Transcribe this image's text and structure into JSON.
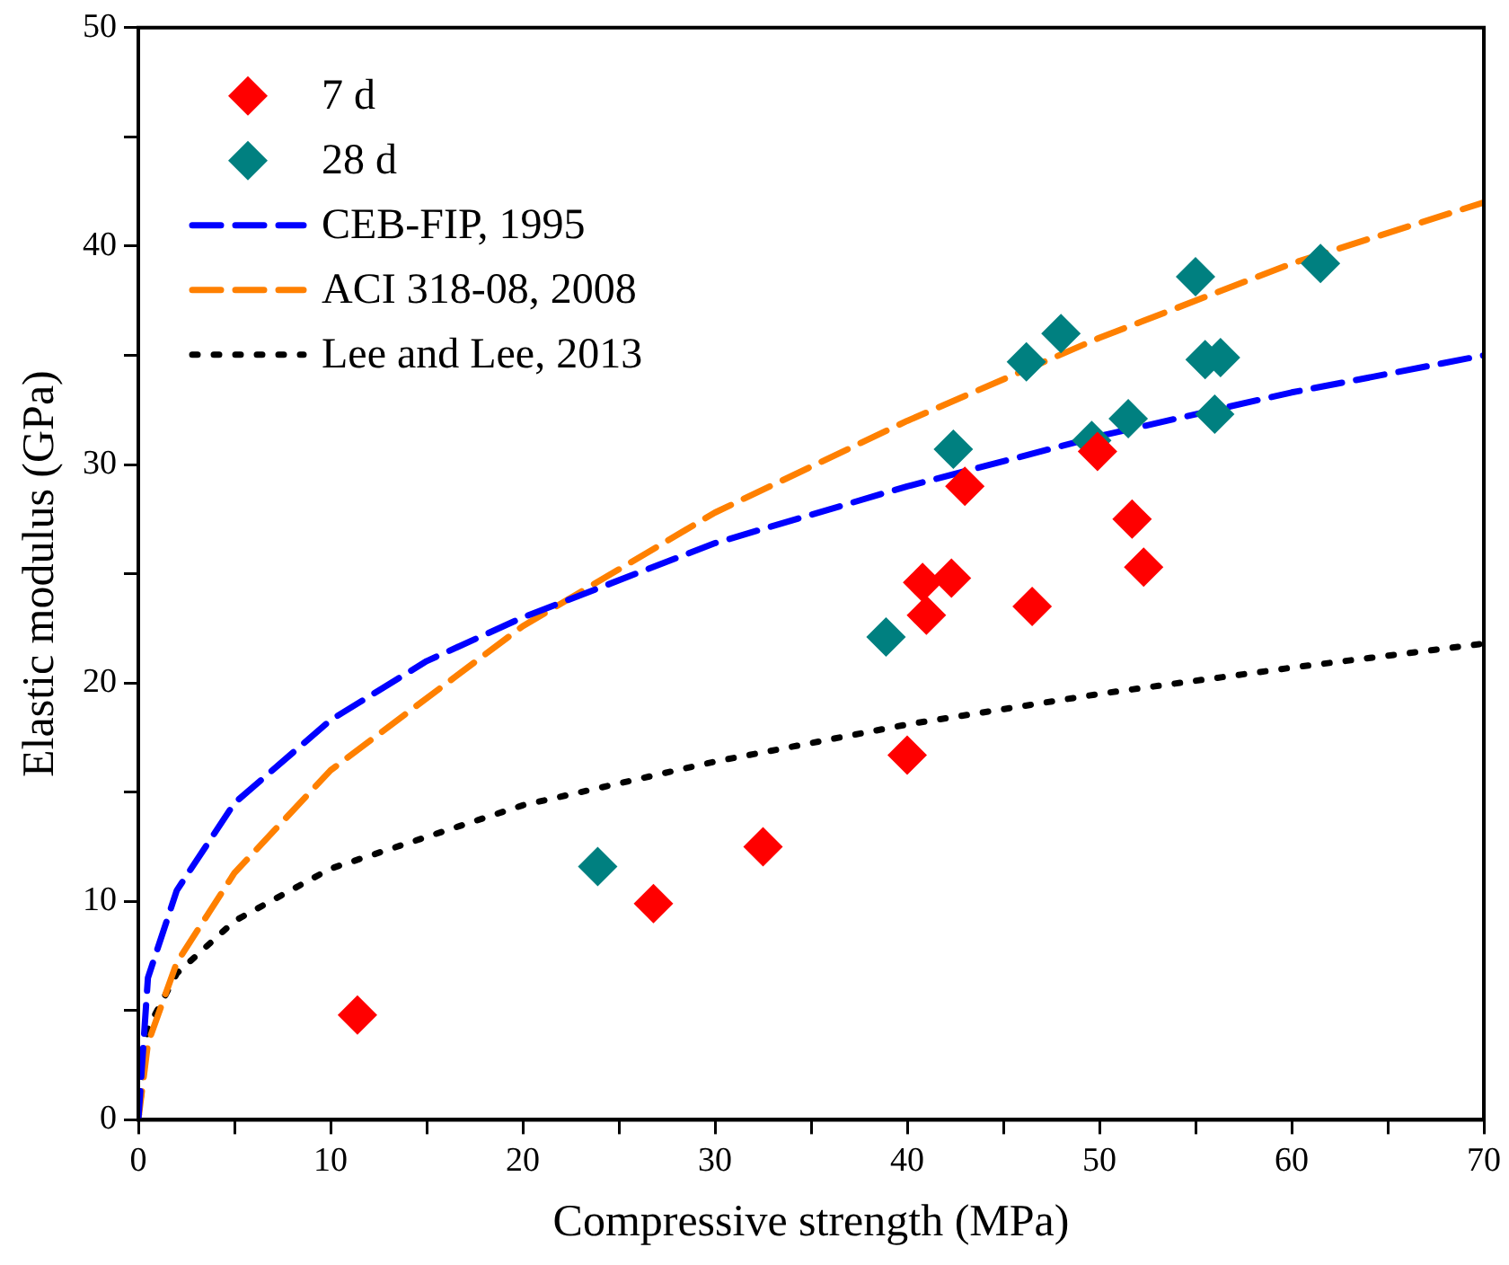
{
  "chart_data": {
    "type": "scatter",
    "xlabel": "Compressive strength (MPa)",
    "ylabel": "Elastic modulus (GPa)",
    "xlim": [
      0,
      70
    ],
    "ylim": [
      0,
      50
    ],
    "xticks": [
      0,
      {
        "value": 5,
        "label": null
      },
      10,
      {
        "value": 15,
        "label": null
      },
      20,
      {
        "value": 25,
        "label": null
      },
      30,
      {
        "value": 35,
        "label": null
      },
      40,
      {
        "value": 45,
        "label": null
      },
      50,
      {
        "value": 55,
        "label": null
      },
      60,
      {
        "value": 65,
        "label": null
      },
      70
    ],
    "yticks": [
      0,
      {
        "value": 5,
        "label": null
      },
      10,
      {
        "value": 15,
        "label": null
      },
      20,
      {
        "value": 25,
        "label": null
      },
      30,
      {
        "value": 35,
        "label": null
      },
      40,
      {
        "value": 45,
        "label": null
      },
      50
    ],
    "grid": false,
    "legend": "top left",
    "marker": "diamond",
    "series": [
      {
        "name": "7 d",
        "color": "#ff0000",
        "x": [
          11.4,
          26.8,
          32.5,
          40.0,
          40.8,
          41.0,
          42.3,
          43.0,
          46.5,
          49.9,
          51.7,
          52.3
        ],
        "values": [
          4.8,
          9.9,
          12.5,
          16.7,
          24.6,
          23.1,
          24.8,
          29.0,
          23.5,
          30.6,
          27.5,
          25.3
        ]
      },
      {
        "name": "28 d",
        "color": "#008080",
        "x": [
          23.9,
          38.9,
          42.4,
          46.2,
          48.0,
          49.6,
          51.5,
          55.0,
          55.5,
          56.0,
          56.3,
          61.5
        ],
        "values": [
          11.6,
          22.1,
          30.7,
          34.7,
          36.0,
          31.1,
          32.1,
          38.6,
          34.8,
          32.3,
          34.9,
          39.2
        ]
      },
      {
        "name": "CEB-FIP, 1995",
        "type": "line",
        "line_style": "dashed",
        "marker": "none",
        "color": "#0000ff",
        "x": [
          0,
          0.5,
          2,
          5,
          10,
          15,
          20,
          30,
          40,
          50,
          60,
          70
        ],
        "values": [
          0,
          6.5,
          10.5,
          14.5,
          18.3,
          21,
          23,
          26.4,
          29,
          31.3,
          33.3,
          35
        ]
      },
      {
        "name": "ACI 318-08, 2008",
        "type": "line",
        "line_style": "dashed",
        "marker": "none",
        "color": "#ff8000",
        "x": [
          0,
          0.5,
          2,
          5,
          10,
          20,
          30,
          40,
          50,
          60,
          70
        ],
        "values": [
          0,
          3.5,
          7.2,
          11.3,
          16,
          22.6,
          27.8,
          32,
          35.8,
          39.2,
          42
        ]
      },
      {
        "name": "Lee and Lee, 2013",
        "type": "line",
        "line_style": "dotted",
        "marker": "none",
        "color": "#000000",
        "x": [
          0,
          0.5,
          2,
          5,
          10,
          20,
          30,
          40,
          50,
          60,
          70
        ],
        "values": [
          0,
          4.2,
          6.7,
          9.1,
          11.5,
          14.4,
          16.4,
          18.1,
          19.5,
          20.7,
          21.8
        ]
      }
    ]
  }
}
